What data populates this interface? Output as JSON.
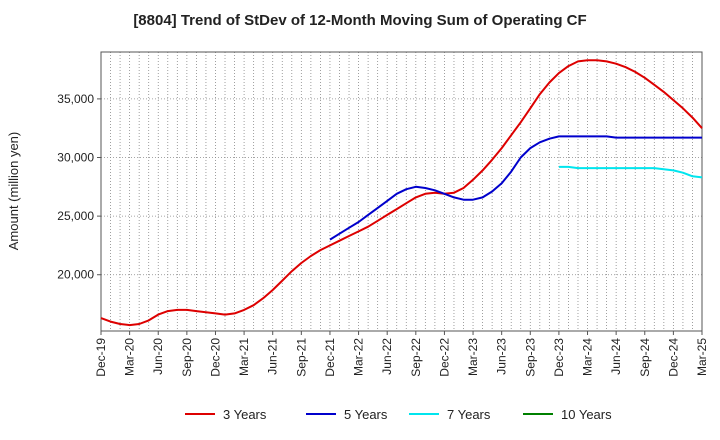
{
  "chart_data": {
    "type": "line",
    "title": "[8804]  Trend of StDev of 12-Month Moving Sum of Operating CF",
    "xlabel": "",
    "ylabel": "Amount (million yen)",
    "x_ticks": [
      "Dec-19",
      "Mar-20",
      "Jun-20",
      "Sep-20",
      "Dec-20",
      "Mar-21",
      "Jun-21",
      "Sep-21",
      "Dec-21",
      "Mar-22",
      "Jun-22",
      "Sep-22",
      "Dec-22",
      "Mar-23",
      "Jun-23",
      "Sep-23",
      "Dec-23",
      "Mar-24",
      "Jun-24",
      "Sep-24",
      "Dec-24",
      "Mar-25"
    ],
    "y_ticks": [
      20000,
      25000,
      30000,
      35000
    ],
    "y_tick_labels": [
      "20,000",
      "25,000",
      "30,000",
      "35,000"
    ],
    "ylim": [
      15200,
      39000
    ],
    "grid": true,
    "legend_position": "bottom",
    "series": [
      {
        "name": "3 Years",
        "color": "#dd0000",
        "start_index": 0,
        "values": [
          16300,
          16000,
          15800,
          15700,
          15800,
          16100,
          16600,
          16900,
          17000,
          17000,
          16900,
          16800,
          16700,
          16600,
          16700,
          17000,
          17400,
          18000,
          18700,
          19500,
          20300,
          21000,
          21600,
          22100,
          22500,
          22900,
          23300,
          23700,
          24100,
          24600,
          25100,
          25600,
          26100,
          26600,
          26900,
          27000,
          26900,
          27000,
          27400,
          28100,
          28900,
          29800,
          30800,
          31900,
          33000,
          34200,
          35400,
          36400,
          37200,
          37800,
          38200,
          38300,
          38300,
          38200,
          38000,
          37700,
          37300,
          36800,
          36200,
          35600,
          34900,
          34200,
          33400,
          32500
        ]
      },
      {
        "name": "5 Years",
        "color": "#0000cc",
        "start_index": 24,
        "values": [
          23000,
          23500,
          24000,
          24500,
          25100,
          25700,
          26300,
          26900,
          27300,
          27500,
          27400,
          27200,
          26900,
          26600,
          26400,
          26400,
          26600,
          27100,
          27800,
          28800,
          30000,
          30800,
          31300,
          31600,
          31800,
          31800,
          31800,
          31800,
          31800,
          31800,
          31700,
          31700,
          31700,
          31700,
          31700,
          31700,
          31700,
          31700,
          31700,
          31700
        ]
      },
      {
        "name": "7 Years",
        "color": "#00e5ee",
        "start_index": 48,
        "values": [
          29200,
          29200,
          29100,
          29100,
          29100,
          29100,
          29100,
          29100,
          29100,
          29100,
          29100,
          29000,
          28900,
          28700,
          28400,
          28300
        ]
      },
      {
        "name": "10 Years",
        "color": "#008000",
        "start_index": 0,
        "values": []
      }
    ]
  }
}
